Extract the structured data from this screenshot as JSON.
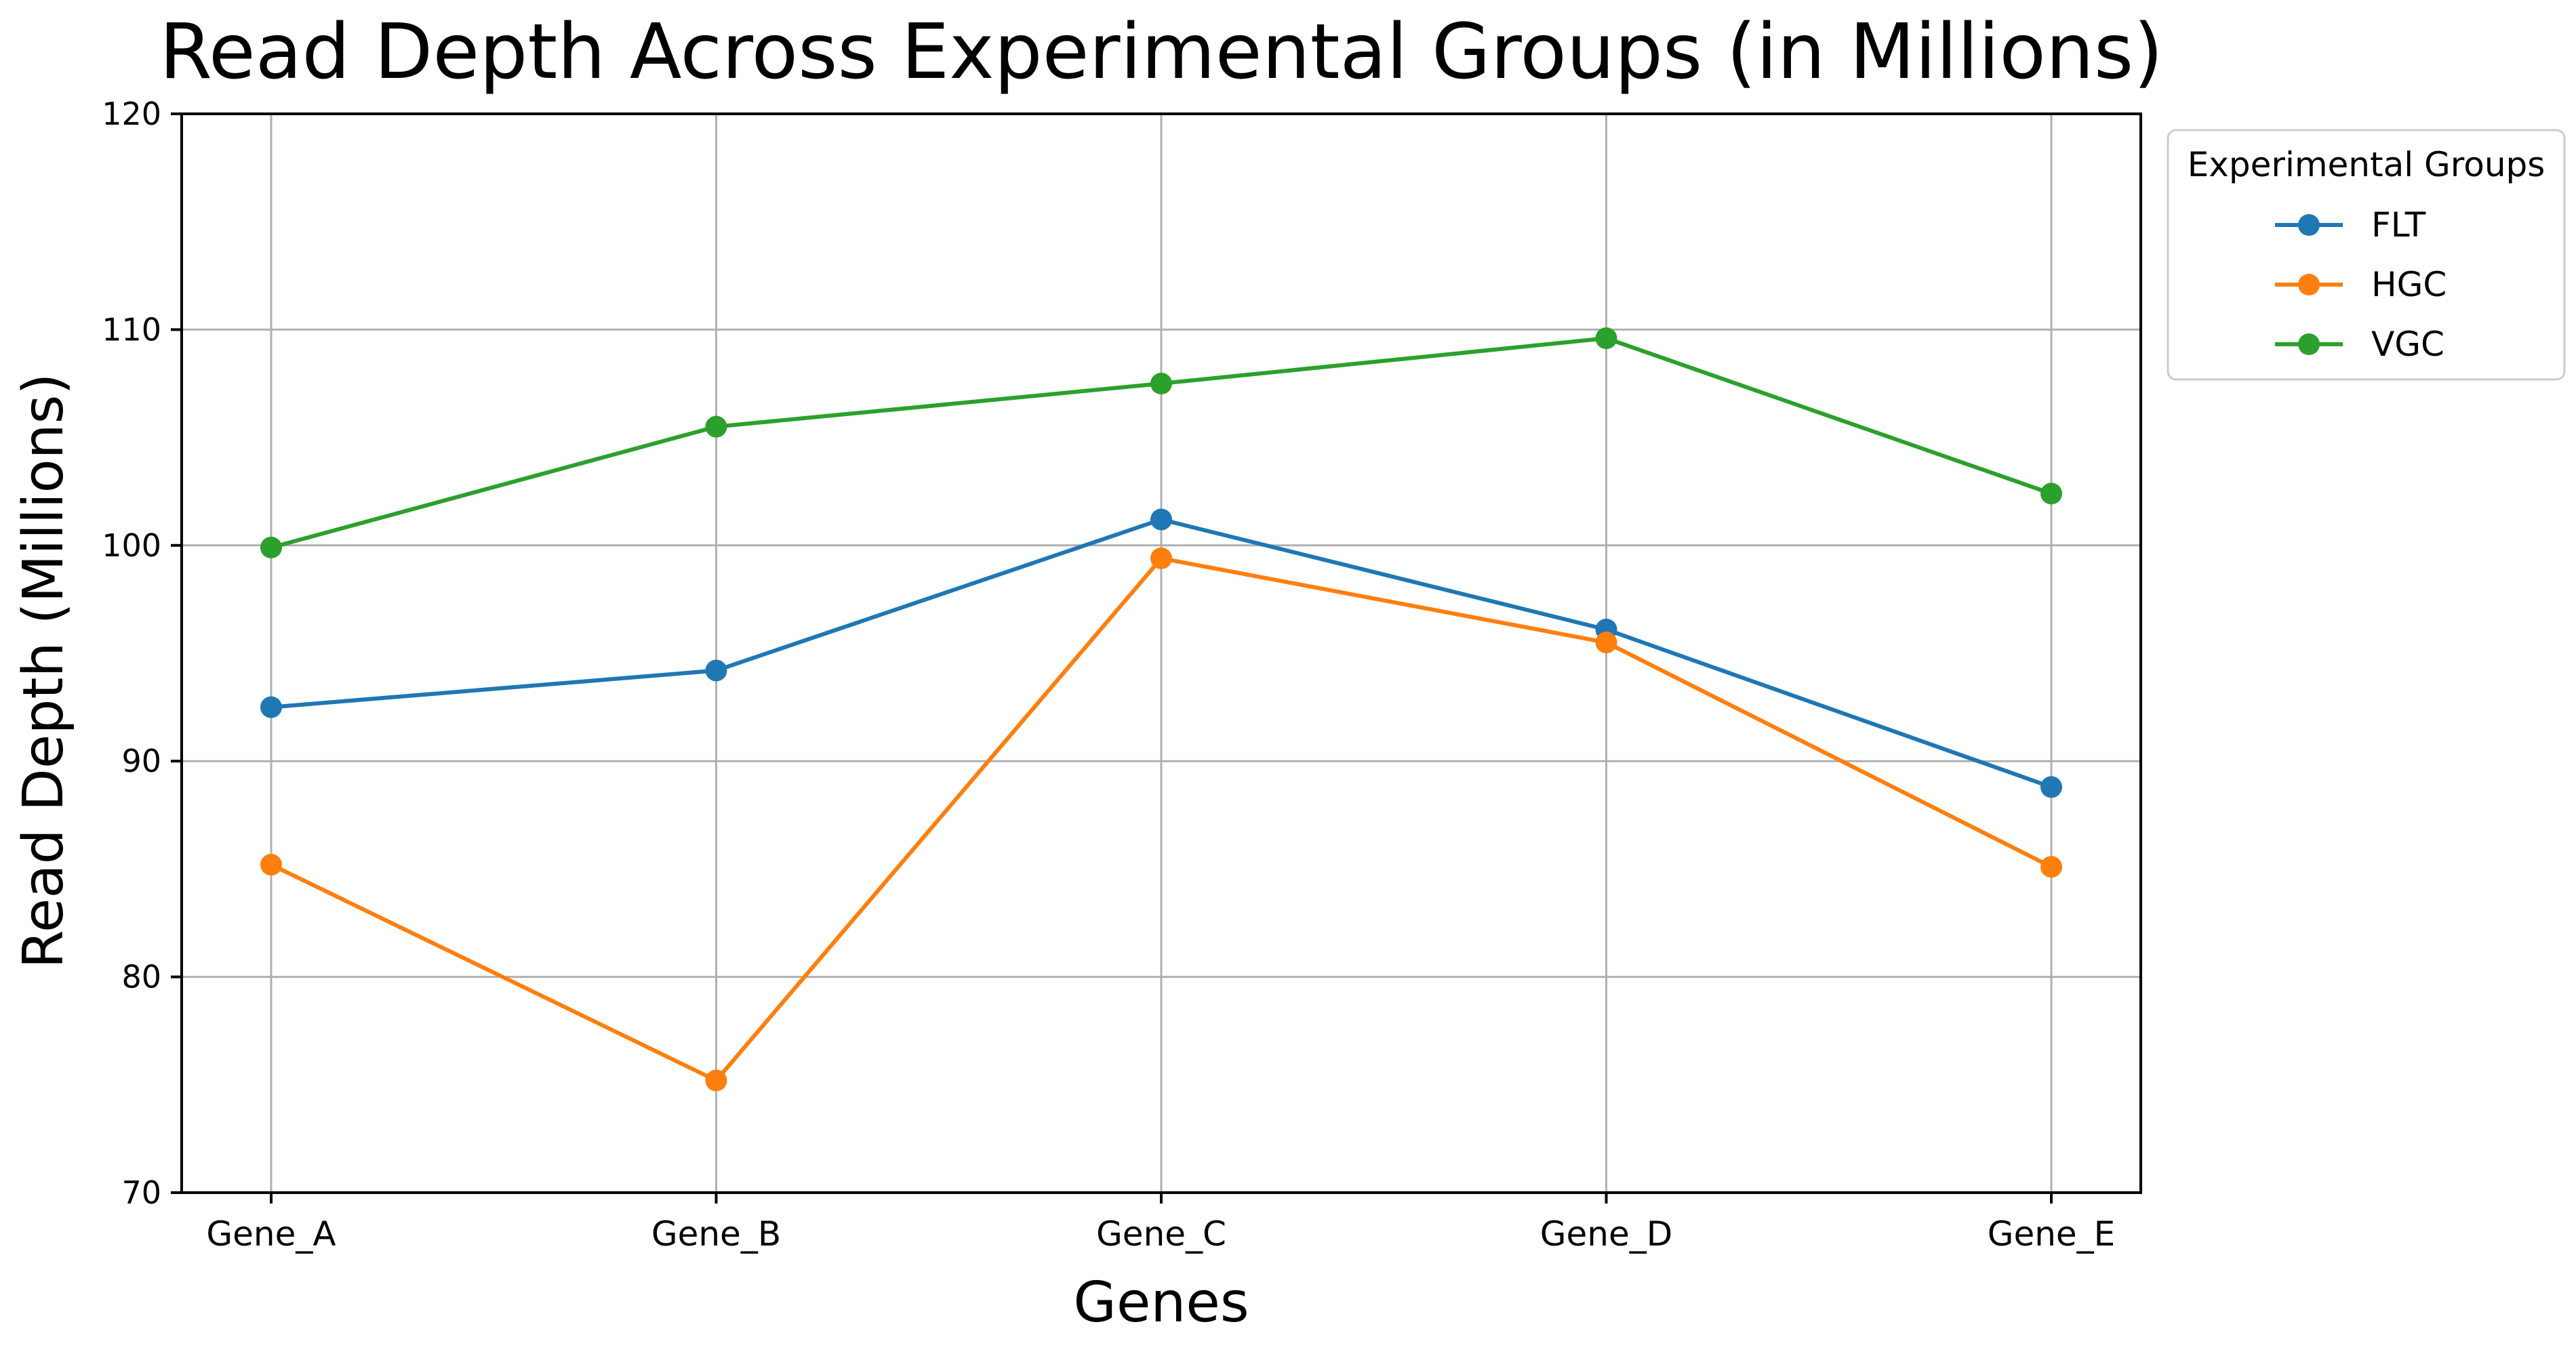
{
  "chart_data": {
    "type": "line",
    "title": "Read Depth Across Experimental Groups (in Millions)",
    "xlabel": "Genes",
    "ylabel": "Read Depth (Millions)",
    "categories": [
      "Gene_A",
      "Gene_B",
      "Gene_C",
      "Gene_D",
      "Gene_E"
    ],
    "ylim": [
      70,
      120
    ],
    "yticks": [
      70,
      80,
      90,
      100,
      110,
      120
    ],
    "grid": true,
    "legend": {
      "title": "Experimental Groups",
      "placement": "outside-top-right"
    },
    "series": [
      {
        "name": "FLT",
        "color": "#1f77b4",
        "marker": "circle",
        "values": [
          92.5,
          94.2,
          101.2,
          96.1,
          88.8
        ]
      },
      {
        "name": "HGC",
        "color": "#ff7f0e",
        "marker": "circle",
        "values": [
          85.2,
          75.2,
          99.4,
          95.5,
          85.1
        ]
      },
      {
        "name": "VGC",
        "color": "#2ca02c",
        "marker": "circle",
        "values": [
          99.9,
          105.5,
          107.5,
          109.6,
          102.4
        ]
      }
    ]
  }
}
